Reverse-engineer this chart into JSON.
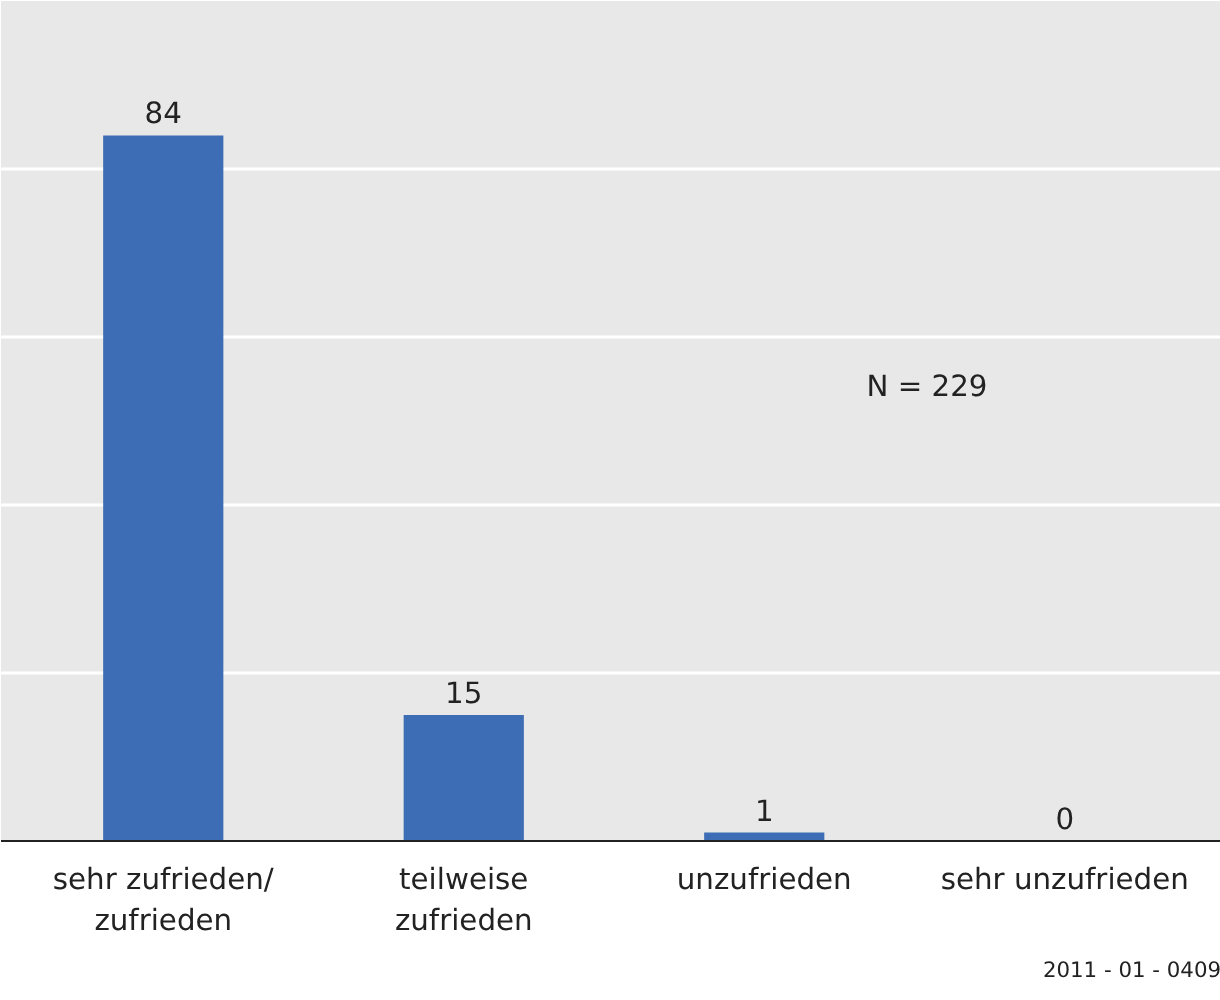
{
  "chart_data": {
    "type": "bar",
    "categories": [
      "sehr zufrieden/\nzufrieden",
      "teilweise\nzufrieden",
      "unzufrieden",
      "sehr unzufrieden"
    ],
    "values": [
      84,
      15,
      1,
      0
    ],
    "color": "#3d6db4",
    "ylim": [
      0,
      100
    ],
    "yticks": [
      {
        "value": 0,
        "label": null
      },
      {
        "value": 20,
        "label": null
      },
      {
        "value": 40,
        "label": null
      },
      {
        "value": 60,
        "label": null
      },
      {
        "value": 80,
        "label": null
      }
    ],
    "grid": "y",
    "tick_labels": "x",
    "data_labels": true,
    "annotations": [
      "N = 229",
      "2011 - 01 - 0409"
    ]
  }
}
